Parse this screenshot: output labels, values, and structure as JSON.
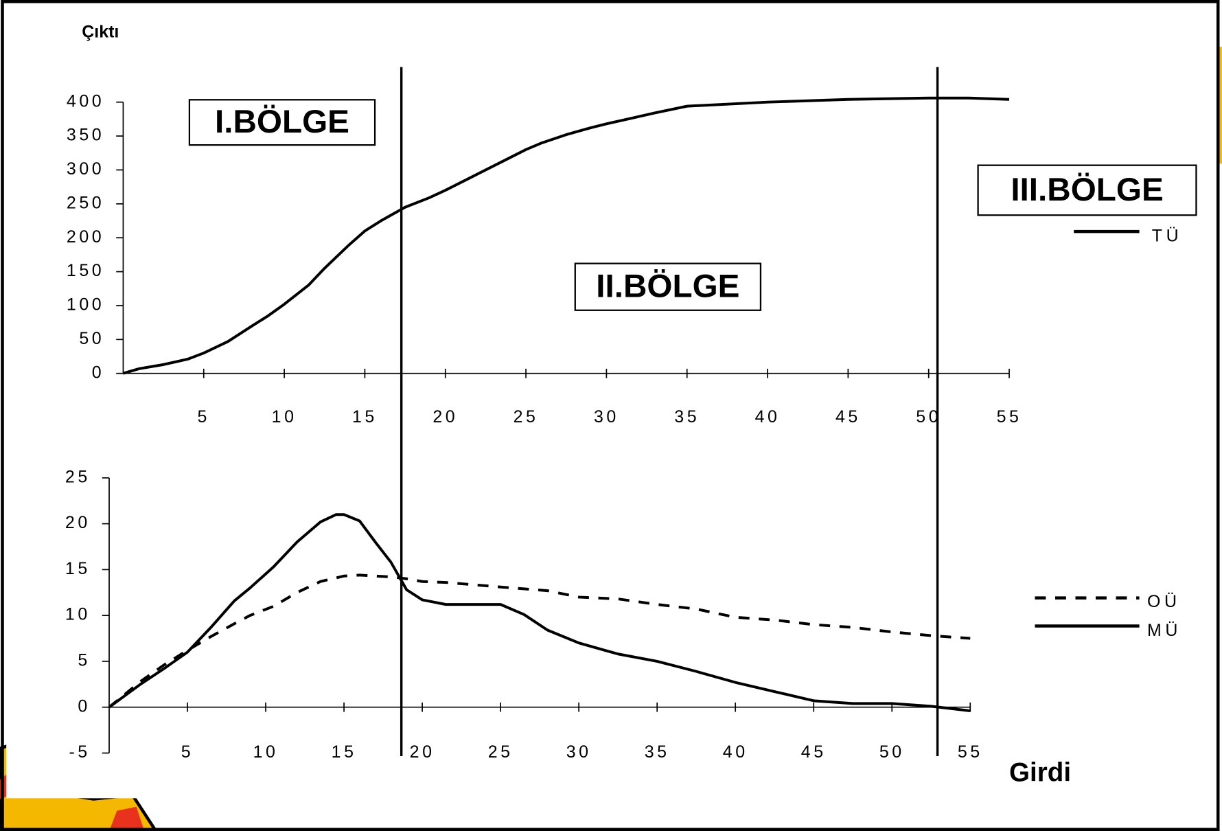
{
  "chart_data": [
    {
      "type": "line",
      "y_label": "Çıktı",
      "annotations": [
        "I.BÖLGE",
        "II.BÖLGE",
        "III.BÖLGE"
      ],
      "x": [
        0,
        1,
        2.5,
        4,
        5,
        6.5,
        8,
        9,
        10,
        11.5,
        12.5,
        14,
        15,
        16,
        17.5,
        19,
        20,
        21.5,
        22.5,
        24,
        25,
        26,
        27.5,
        29,
        30,
        31.5,
        33,
        35,
        40,
        45,
        50,
        52.5,
        55
      ],
      "series": [
        {
          "name": "TÜ",
          "color": "#000000",
          "style": "solid",
          "values": [
            0,
            7,
            13,
            21,
            30,
            47,
            70,
            85,
            102,
            130,
            155,
            189,
            210,
            225,
            245,
            259,
            270,
            288,
            300,
            318,
            330,
            340,
            352,
            362,
            368,
            376,
            384,
            394,
            400,
            404,
            406,
            406,
            404
          ]
        }
      ],
      "xlim": [
        0,
        55
      ],
      "xticks": [
        5,
        10,
        15,
        20,
        25,
        30,
        35,
        40,
        45,
        50,
        55
      ],
      "ylim": [
        0,
        400
      ],
      "yticks": [
        0,
        50,
        100,
        150,
        200,
        250,
        300,
        350,
        400
      ],
      "legend": "right"
    },
    {
      "type": "line",
      "x_label": "Girdi",
      "x": [
        0,
        2,
        3.5,
        5,
        6.5,
        8,
        9,
        10.5,
        12,
        13.5,
        14.5,
        15,
        16,
        17,
        18,
        19,
        20,
        21.5,
        25,
        26.5,
        28,
        30,
        32.5,
        35,
        37.5,
        40,
        42.5,
        45,
        47.5,
        50,
        52.5,
        55
      ],
      "series": [
        {
          "name": "OÜ",
          "color": "#000000",
          "style": "dashed",
          "values": [
            0,
            2.8,
            4.6,
            6.2,
            7.7,
            9.1,
            10,
            11,
            12.5,
            13.7,
            14.1,
            14.3,
            14.4,
            14.3,
            14.2,
            14,
            13.7,
            13.6,
            13.1,
            12.9,
            12.7,
            12,
            11.8,
            11.2,
            10.7,
            9.8,
            9.5,
            9,
            8.7,
            8.2,
            7.8,
            7.5
          ]
        },
        {
          "name": "MÜ",
          "color": "#000000",
          "style": "solid",
          "values": [
            0,
            2.5,
            4.2,
            6,
            8.7,
            11.6,
            13,
            15.3,
            18,
            20.2,
            21,
            21,
            20.3,
            18,
            15.8,
            12.8,
            11.7,
            11.2,
            11.2,
            10.1,
            8.4,
            7,
            5.8,
            5,
            3.9,
            2.7,
            1.7,
            0.7,
            0.4,
            0.4,
            0.1,
            -0.4
          ]
        }
      ],
      "xlim": [
        0,
        55
      ],
      "xticks": [
        5,
        10,
        15,
        20,
        25,
        30,
        35,
        40,
        45,
        50,
        55
      ],
      "ylim": [
        -5,
        25
      ],
      "yticks": [
        -5,
        0,
        5,
        10,
        15,
        20,
        25
      ],
      "legend": "right"
    }
  ]
}
